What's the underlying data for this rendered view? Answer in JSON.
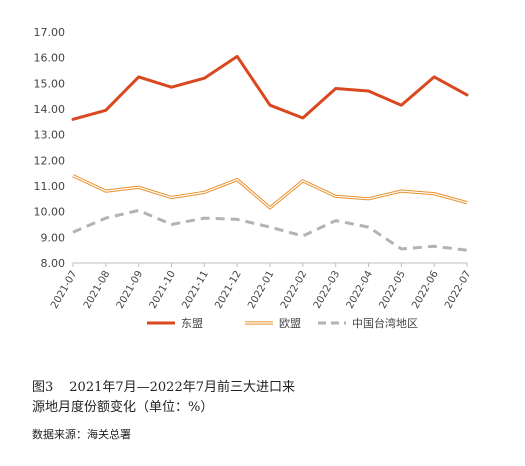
{
  "chart_data": {
    "type": "line",
    "categories": [
      "2021-07",
      "2021-08",
      "2021-09",
      "2021-10",
      "2021-11",
      "2021-12",
      "2022-01",
      "2022-02",
      "2022-03",
      "2022-04",
      "2022-05",
      "2022-06",
      "2022-07"
    ],
    "y_ticks": [
      "8.00",
      "9.00",
      "10.00",
      "11.00",
      "12.00",
      "13.00",
      "14.00",
      "15.00",
      "16.00",
      "17.00"
    ],
    "ylim": [
      8,
      17
    ],
    "grid": false,
    "legend_position": "bottom",
    "series": [
      {
        "name": "东盟",
        "style": "solid-thick",
        "color": "#d9481f",
        "values": [
          13.6,
          13.95,
          15.25,
          14.85,
          15.2,
          16.05,
          14.15,
          13.65,
          14.8,
          14.7,
          14.15,
          15.25,
          14.55
        ]
      },
      {
        "name": "欧盟",
        "style": "double",
        "color": "#e8912b",
        "values": [
          11.4,
          10.8,
          10.95,
          10.55,
          10.75,
          11.25,
          10.15,
          11.2,
          10.6,
          10.5,
          10.8,
          10.7,
          10.35
        ]
      },
      {
        "name": "中国台湾地区",
        "style": "dashed",
        "color": "#b3b3b3",
        "values": [
          9.2,
          9.75,
          10.05,
          9.5,
          9.75,
          9.7,
          9.4,
          9.05,
          9.65,
          9.4,
          8.55,
          8.65,
          8.5
        ]
      }
    ]
  },
  "caption": {
    "figure_number": "图3",
    "line1": "2021年7月—2022年7月前三大进口来",
    "line2": "源地月度份额变化（单位：%）"
  },
  "source": "数据来源：海关总署"
}
